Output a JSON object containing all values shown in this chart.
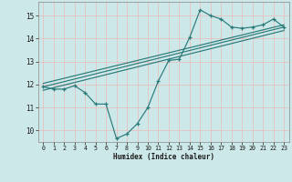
{
  "xlabel": "Humidex (Indice chaleur)",
  "bg_color": "#cde8e8",
  "grid_color": "#e8c0c0",
  "line_color": "#2a7a7a",
  "xlim": [
    -0.5,
    23.5
  ],
  "ylim": [
    9.5,
    15.6
  ],
  "yticks": [
    10,
    11,
    12,
    13,
    14,
    15
  ],
  "xticks": [
    0,
    1,
    2,
    3,
    4,
    5,
    6,
    7,
    8,
    9,
    10,
    11,
    12,
    13,
    14,
    15,
    16,
    17,
    18,
    19,
    20,
    21,
    22,
    23
  ],
  "main_x": [
    0,
    1,
    2,
    3,
    4,
    5,
    6,
    7,
    8,
    9,
    10,
    11,
    12,
    13,
    14,
    15,
    16,
    17,
    18,
    19,
    20,
    21,
    22,
    23
  ],
  "main_y": [
    11.9,
    11.8,
    11.8,
    11.95,
    11.65,
    11.15,
    11.15,
    9.65,
    9.85,
    10.3,
    11.0,
    12.15,
    13.05,
    13.1,
    14.05,
    15.25,
    15.0,
    14.85,
    14.5,
    14.45,
    14.5,
    14.6,
    14.85,
    14.5
  ],
  "trend_lines": [
    {
      "x": [
        0,
        23
      ],
      "y": [
        11.9,
        14.5
      ]
    },
    {
      "x": [
        0,
        23
      ],
      "y": [
        11.75,
        14.35
      ]
    },
    {
      "x": [
        0,
        23
      ],
      "y": [
        12.05,
        14.6
      ]
    }
  ]
}
